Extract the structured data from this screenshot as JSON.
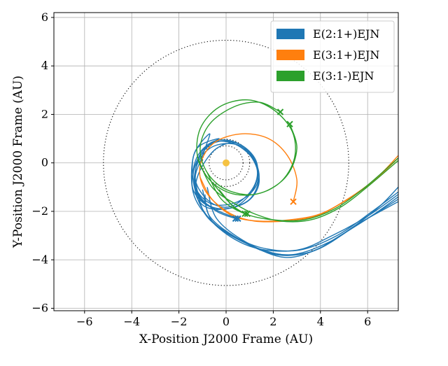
{
  "chart_data": {
    "type": "line",
    "title": "",
    "xlabel": "X-Position J2000 Frame (AU)",
    "ylabel": "Y-Position J2000 Frame (AU)",
    "xlim": [
      -7.3,
      7.3
    ],
    "ylim": [
      -6.1,
      6.2
    ],
    "x_ticks": [
      -6,
      -4,
      -2,
      0,
      2,
      4,
      6
    ],
    "y_ticks": [
      -6,
      -4,
      -2,
      0,
      2,
      4,
      6
    ],
    "x_tick_labels": [
      "−6",
      "−4",
      "−2",
      "0",
      "2",
      "4",
      "6"
    ],
    "y_tick_labels": [
      "−6",
      "−4",
      "−2",
      "0",
      "2",
      "4",
      "6"
    ],
    "grid": true,
    "legend_position": "top-right",
    "sun": {
      "x": 0,
      "y": 0,
      "color": "#f5c242"
    },
    "reference_orbits": [
      {
        "radius": 0.72,
        "style": "dotted"
      },
      {
        "radius": 1.0,
        "style": "dotted"
      },
      {
        "radius": 5.2,
        "style": "dotted"
      }
    ],
    "series": [
      {
        "name": "E(2:1+)EJN",
        "color": "#1f77b4",
        "end_markers": [
          [
            0.4,
            -2.3
          ],
          [
            0.5,
            -2.3
          ]
        ],
        "tracks": [
          [
            [
              0.4,
              -2.3
            ],
            [
              -0.4,
              -2.0
            ],
            [
              -1.1,
              -1.4
            ],
            [
              -1.4,
              -0.6
            ],
            [
              -1.2,
              0.3
            ],
            [
              -0.5,
              0.9
            ],
            [
              0.4,
              0.85
            ],
            [
              1.1,
              0.3
            ],
            [
              1.4,
              -0.6
            ],
            [
              1.0,
              -1.5
            ],
            [
              0.0,
              -1.9
            ],
            [
              -0.9,
              -1.8
            ],
            [
              -1.3,
              -1.2
            ],
            [
              -1.1,
              -0.3
            ],
            [
              -0.4,
              0.6
            ],
            [
              0.5,
              0.8
            ],
            [
              1.2,
              0.1
            ],
            [
              1.3,
              -0.9
            ],
            [
              0.5,
              -1.6
            ],
            [
              -0.6,
              -1.7
            ],
            [
              -1.3,
              -1.0
            ],
            [
              -1.2,
              0.0
            ],
            [
              -0.5,
              0.7
            ],
            [
              0.6,
              0.7
            ],
            [
              1.3,
              -0.2
            ],
            [
              1.1,
              -1.1
            ],
            [
              0.2,
              -1.8
            ],
            [
              -0.7,
              -1.6
            ],
            [
              -1.3,
              -0.7
            ],
            [
              -1.0,
              0.3
            ],
            [
              -0.7,
              1.2
            ],
            [
              -1.4,
              0.2
            ],
            [
              -1.2,
              -1.5
            ],
            [
              -0.3,
              -2.7
            ],
            [
              1.2,
              -3.5
            ],
            [
              3.0,
              -3.6
            ],
            [
              4.5,
              -3.0
            ],
            [
              6.0,
              -2.2
            ],
            [
              7.3,
              -1.3
            ]
          ],
          [
            [
              0.5,
              -2.3
            ],
            [
              -0.5,
              -1.9
            ],
            [
              -1.2,
              -1.3
            ],
            [
              -1.3,
              -0.4
            ],
            [
              -1.0,
              0.5
            ],
            [
              -0.2,
              0.9
            ],
            [
              0.7,
              0.7
            ],
            [
              1.3,
              0.0
            ],
            [
              1.2,
              -1.0
            ],
            [
              0.4,
              -1.8
            ],
            [
              -0.7,
              -1.8
            ],
            [
              -1.4,
              -1.1
            ],
            [
              -1.3,
              -0.1
            ],
            [
              -0.6,
              0.8
            ],
            [
              0.3,
              0.8
            ],
            [
              1.1,
              0.2
            ],
            [
              1.4,
              -0.8
            ],
            [
              0.9,
              -1.6
            ],
            [
              -0.2,
              -1.9
            ],
            [
              -1.1,
              -1.5
            ],
            [
              -1.4,
              -0.5
            ],
            [
              -1.0,
              0.5
            ],
            [
              -0.3,
              1.0
            ],
            [
              -1.3,
              0.5
            ],
            [
              -1.4,
              -1.2
            ],
            [
              -0.6,
              -2.4
            ],
            [
              0.8,
              -3.3
            ],
            [
              2.6,
              -3.8
            ],
            [
              4.3,
              -3.3
            ],
            [
              5.8,
              -2.4
            ],
            [
              7.3,
              -1.6
            ]
          ],
          [
            [
              -0.9,
              -1.3
            ],
            [
              -0.7,
              -2.2
            ],
            [
              0.3,
              -3.0
            ],
            [
              1.8,
              -3.7
            ],
            [
              3.5,
              -3.7
            ],
            [
              5.0,
              -2.9
            ],
            [
              6.3,
              -2.1
            ],
            [
              7.3,
              -1.4
            ]
          ],
          [
            [
              -1.0,
              -1.1
            ],
            [
              -0.6,
              -2.4
            ],
            [
              0.6,
              -3.2
            ],
            [
              2.2,
              -3.8
            ],
            [
              3.8,
              -3.6
            ],
            [
              5.3,
              -2.7
            ],
            [
              6.5,
              -1.8
            ],
            [
              7.3,
              -1.0
            ]
          ],
          [
            [
              -1.3,
              -0.8
            ],
            [
              -0.9,
              -2.1
            ],
            [
              0.1,
              -2.9
            ],
            [
              1.5,
              -3.5
            ],
            [
              3.1,
              -3.6
            ],
            [
              4.7,
              -3.0
            ],
            [
              6.2,
              -2.0
            ],
            [
              7.3,
              -1.2
            ]
          ],
          [
            [
              -0.8,
              -1.0
            ],
            [
              -0.4,
              -2.3
            ],
            [
              0.9,
              -3.3
            ],
            [
              2.5,
              -3.9
            ],
            [
              4.0,
              -3.5
            ],
            [
              5.5,
              -2.6
            ],
            [
              7.3,
              -1.5
            ]
          ]
        ]
      },
      {
        "name": "E(3:1+)EJN",
        "color": "#ff7f0e",
        "end_markers": [
          [
            2.85,
            -1.6
          ]
        ],
        "tracks": [
          [
            [
              2.85,
              -1.6
            ],
            [
              3.0,
              -0.7
            ],
            [
              2.6,
              0.3
            ],
            [
              1.8,
              1.0
            ],
            [
              0.7,
              1.2
            ],
            [
              -0.4,
              0.9
            ],
            [
              -1.0,
              0.2
            ],
            [
              -1.1,
              -0.6
            ],
            [
              -0.7,
              -1.4
            ],
            [
              0.2,
              -2.1
            ],
            [
              1.2,
              -2.4
            ],
            [
              2.5,
              -2.4
            ],
            [
              3.8,
              -2.2
            ],
            [
              5.0,
              -1.6
            ],
            [
              6.2,
              -0.8
            ],
            [
              7.3,
              0.2
            ]
          ],
          [
            [
              -1.1,
              -0.6
            ],
            [
              -0.6,
              -1.5
            ],
            [
              0.3,
              -2.2
            ],
            [
              1.4,
              -2.4
            ],
            [
              2.7,
              -2.35
            ],
            [
              4.0,
              -2.1
            ],
            [
              5.3,
              -1.4
            ],
            [
              6.4,
              -0.6
            ],
            [
              7.3,
              0.3
            ]
          ]
        ]
      },
      {
        "name": "E(3:1-)EJN",
        "color": "#2ca02c",
        "end_markers": [
          [
            2.3,
            2.1
          ],
          [
            2.7,
            1.6
          ],
          [
            0.8,
            -2.1
          ],
          [
            0.9,
            -2.1
          ]
        ],
        "tracks": [
          [
            [
              2.3,
              2.1
            ],
            [
              1.4,
              2.5
            ],
            [
              0.3,
              2.3
            ],
            [
              -0.7,
              1.6
            ],
            [
              -1.1,
              0.6
            ],
            [
              -0.8,
              -0.4
            ],
            [
              0.0,
              -1.1
            ],
            [
              1.2,
              -1.3
            ],
            [
              2.3,
              -0.8
            ],
            [
              2.9,
              0.2
            ],
            [
              2.8,
              1.3
            ],
            [
              2.0,
              2.2
            ],
            [
              0.9,
              2.6
            ],
            [
              -0.3,
              2.3
            ],
            [
              -1.1,
              1.4
            ],
            [
              -1.2,
              0.2
            ],
            [
              -0.6,
              -0.8
            ],
            [
              0.4,
              -1.3
            ],
            [
              1.6,
              -1.2
            ],
            [
              2.6,
              -0.5
            ],
            [
              3.0,
              0.6
            ],
            [
              2.7,
              1.6
            ]
          ],
          [
            [
              -1.2,
              0.2
            ],
            [
              -0.6,
              -1.0
            ],
            [
              0.4,
              -1.7
            ],
            [
              1.2,
              -2.1
            ],
            [
              2.3,
              -2.4
            ],
            [
              3.6,
              -2.35
            ],
            [
              4.9,
              -1.8
            ],
            [
              6.1,
              -0.9
            ],
            [
              7.3,
              0.1
            ]
          ],
          [
            [
              -0.8,
              -0.4
            ],
            [
              -0.2,
              -1.5
            ],
            [
              0.8,
              -2.1
            ],
            [
              2.0,
              -2.35
            ],
            [
              3.3,
              -2.35
            ],
            [
              4.6,
              -1.9
            ],
            [
              5.9,
              -1.0
            ],
            [
              7.3,
              0.2
            ]
          ],
          [
            [
              0.8,
              -2.1
            ],
            [
              0.2,
              -1.7
            ],
            [
              -0.6,
              -0.8
            ]
          ],
          [
            [
              0.9,
              -2.1
            ],
            [
              0.4,
              -1.9
            ],
            [
              -0.3,
              -1.1
            ]
          ]
        ]
      }
    ]
  }
}
